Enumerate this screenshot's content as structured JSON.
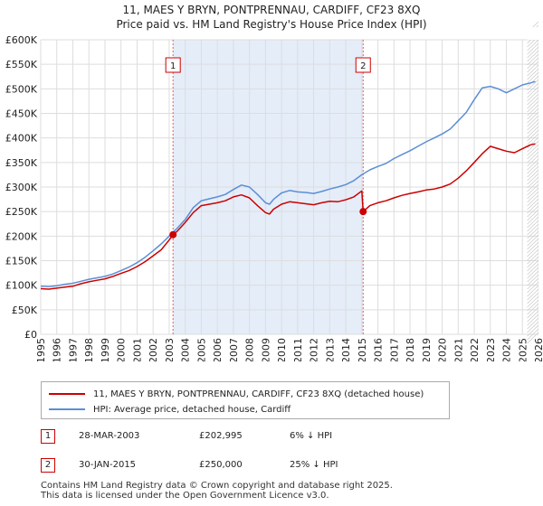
{
  "chart_data": {
    "type": "line",
    "title": "11, MAES Y BRYN, PONTPRENNAU, CARDIFF, CF23 8XQ",
    "subtitle": "Price paid vs. HM Land Registry's House Price Index (HPI)",
    "xlabel": "",
    "ylabel": "",
    "xlim": [
      1995,
      2026
    ],
    "ylim": [
      0,
      600000
    ],
    "x_ticks": [
      "1995",
      "1996",
      "1997",
      "1998",
      "1999",
      "2000",
      "2001",
      "2002",
      "2003",
      "2004",
      "2005",
      "2006",
      "2007",
      "2008",
      "2009",
      "2010",
      "2011",
      "2012",
      "2013",
      "2014",
      "2015",
      "2016",
      "2017",
      "2018",
      "2019",
      "2020",
      "2021",
      "2022",
      "2023",
      "2024",
      "2025",
      "2026"
    ],
    "y_ticks": [
      {
        "value": 0,
        "label": "£0"
      },
      {
        "value": 50000,
        "label": "£50K"
      },
      {
        "value": 100000,
        "label": "£100K"
      },
      {
        "value": 150000,
        "label": "£150K"
      },
      {
        "value": 200000,
        "label": "£200K"
      },
      {
        "value": 250000,
        "label": "£250K"
      },
      {
        "value": 300000,
        "label": "£300K"
      },
      {
        "value": 350000,
        "label": "£350K"
      },
      {
        "value": 400000,
        "label": "£400K"
      },
      {
        "value": 450000,
        "label": "£450K"
      },
      {
        "value": 500000,
        "label": "£500K"
      },
      {
        "value": 550000,
        "label": "£550K"
      },
      {
        "value": 600000,
        "label": "£600K"
      }
    ],
    "grid": true,
    "shaded_period": [
      2003.24,
      2015.08
    ],
    "projection_from": 2025.3,
    "series": [
      {
        "name": "11, MAES Y BRYN, PONTPRENNAU, CARDIFF, CF23 8XQ (detached house)",
        "color": "#cc0000",
        "x": [
          1995,
          1995.5,
          1996,
          1996.5,
          1997,
          1997.5,
          1998,
          1998.5,
          1999,
          1999.5,
          2000,
          2000.5,
          2001,
          2001.5,
          2002,
          2002.5,
          2003,
          2003.24,
          2003.5,
          2004,
          2004.5,
          2005,
          2005.5,
          2006,
          2006.5,
          2007,
          2007.5,
          2008,
          2008.5,
          2009,
          2009.25,
          2009.5,
          2010,
          2010.5,
          2011,
          2011.5,
          2012,
          2012.5,
          2013,
          2013.5,
          2014,
          2014.5,
          2015.0,
          2015.08,
          2015.5,
          2016,
          2016.5,
          2017,
          2017.5,
          2018,
          2018.5,
          2019,
          2019.5,
          2020,
          2020.5,
          2021,
          2021.5,
          2022,
          2022.5,
          2023,
          2023.5,
          2024,
          2024.5,
          2025,
          2025.5,
          2025.8
        ],
        "values": [
          93000,
          92000,
          94000,
          96000,
          98000,
          103000,
          107000,
          110000,
          113000,
          118000,
          124000,
          130000,
          138000,
          148000,
          160000,
          172000,
          192000,
          202995,
          210000,
          228000,
          248000,
          262000,
          265000,
          268000,
          272000,
          280000,
          284000,
          278000,
          262000,
          248000,
          245000,
          255000,
          265000,
          270000,
          268000,
          266000,
          264000,
          268000,
          271000,
          270000,
          274000,
          280000,
          292000,
          250000,
          262000,
          268000,
          272000,
          278000,
          283000,
          287000,
          290000,
          294000,
          296000,
          300000,
          306000,
          318000,
          333000,
          350000,
          368000,
          383000,
          378000,
          373000,
          370000,
          378000,
          386000,
          388000
        ]
      },
      {
        "name": "HPI: Average price, detached house, Cardiff",
        "color": "#5b8ed6",
        "x": [
          1995,
          1995.5,
          1996,
          1996.5,
          1997,
          1997.5,
          1998,
          1998.5,
          1999,
          1999.5,
          2000,
          2000.5,
          2001,
          2001.5,
          2002,
          2002.5,
          2003,
          2003.5,
          2004,
          2004.5,
          2005,
          2005.5,
          2006,
          2006.5,
          2007,
          2007.5,
          2008,
          2008.5,
          2009,
          2009.25,
          2009.5,
          2010,
          2010.5,
          2011,
          2011.5,
          2012,
          2012.5,
          2013,
          2013.5,
          2014,
          2014.5,
          2015,
          2015.5,
          2016,
          2016.5,
          2017,
          2017.5,
          2018,
          2018.5,
          2019,
          2019.5,
          2020,
          2020.5,
          2021,
          2021.5,
          2022,
          2022.5,
          2023,
          2023.5,
          2024,
          2024.5,
          2025,
          2025.5,
          2025.8
        ],
        "values": [
          98000,
          97000,
          99000,
          102000,
          104000,
          108000,
          112000,
          115000,
          118000,
          123000,
          130000,
          137000,
          146000,
          157000,
          170000,
          184000,
          200000,
          216000,
          234000,
          258000,
          272000,
          276000,
          280000,
          285000,
          295000,
          304000,
          300000,
          285000,
          268000,
          265000,
          275000,
          288000,
          293000,
          290000,
          289000,
          287000,
          291000,
          296000,
          300000,
          305000,
          313000,
          325000,
          335000,
          342000,
          348000,
          358000,
          366000,
          374000,
          383000,
          392000,
          400000,
          408000,
          418000,
          435000,
          452000,
          478000,
          502000,
          505000,
          500000,
          492000,
          500000,
          508000,
          512000,
          515000
        ]
      }
    ],
    "sales": [
      {
        "id": "1",
        "x": 2003.24,
        "value": 202995,
        "date": "28-MAR-2003",
        "price": "£202,995",
        "hpi": "6% ↓ HPI"
      },
      {
        "id": "2",
        "x": 2015.08,
        "value": 250000,
        "date": "30-JAN-2015",
        "price": "£250,000",
        "hpi": "25% ↓ HPI"
      }
    ]
  },
  "legend": {
    "property_label": "11, MAES Y BRYN, PONTPRENNAU, CARDIFF, CF23 8XQ (detached house)",
    "hpi_label": "HPI: Average price, detached house, Cardiff",
    "property_color": "#cc0000",
    "hpi_color": "#5b8ed6"
  },
  "footer": {
    "line1": "Contains HM Land Registry data © Crown copyright and database right 2025.",
    "line2": "This data is licensed under the Open Government Licence v3.0."
  }
}
